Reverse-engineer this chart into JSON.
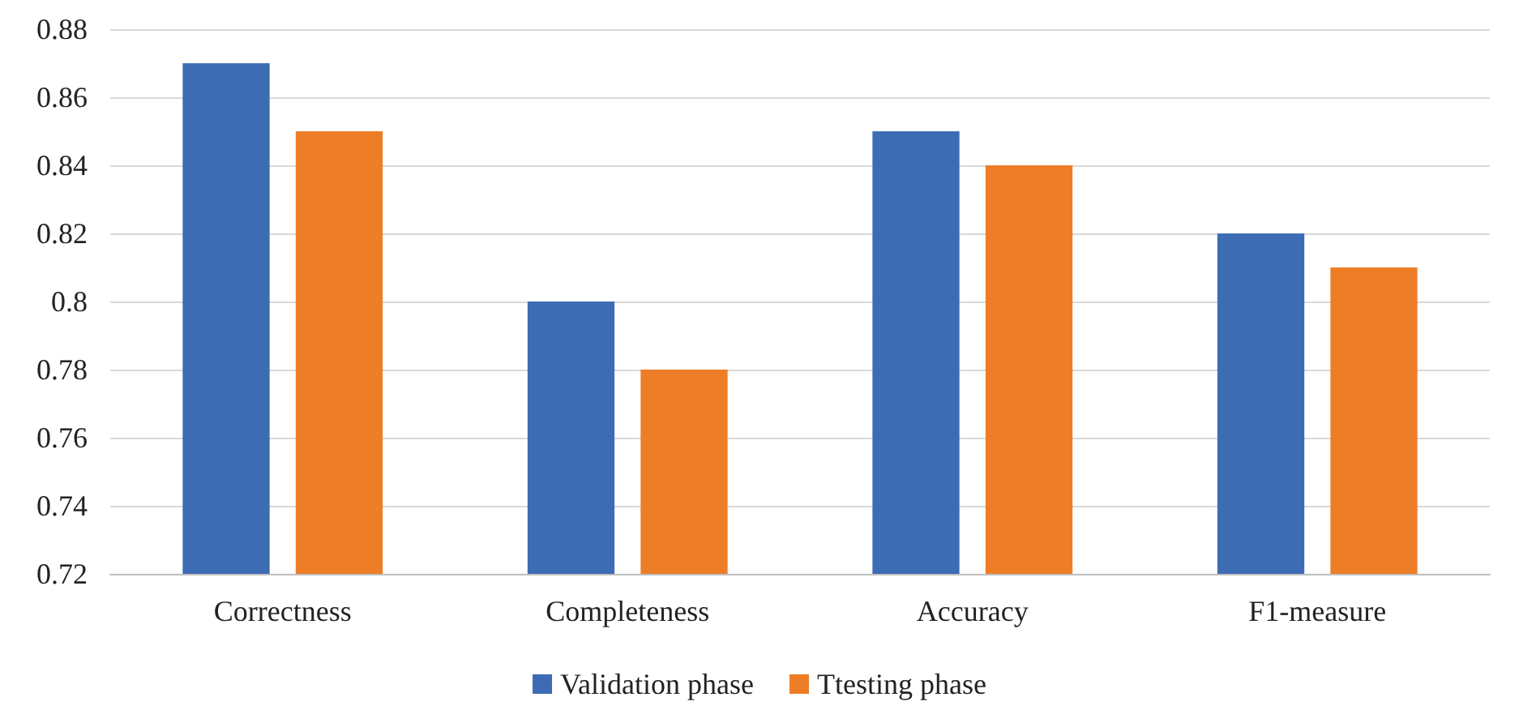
{
  "chart_data": {
    "type": "bar",
    "categories": [
      "Correctness",
      "Completeness",
      "Accuracy",
      "F1-measure"
    ],
    "series": [
      {
        "name": "Validation phase",
        "color": "#3d6cb5",
        "values": [
          0.87,
          0.8,
          0.85,
          0.82
        ]
      },
      {
        "name": "Ttesting phase",
        "color": "#ed7d27",
        "values": [
          0.85,
          0.78,
          0.84,
          0.81
        ]
      }
    ],
    "ylim": [
      0.72,
      0.88
    ],
    "yticks": [
      0.72,
      0.74,
      0.76,
      0.78,
      0.8,
      0.82,
      0.84,
      0.86,
      0.88
    ],
    "grid": "y",
    "legend": "bottom"
  }
}
